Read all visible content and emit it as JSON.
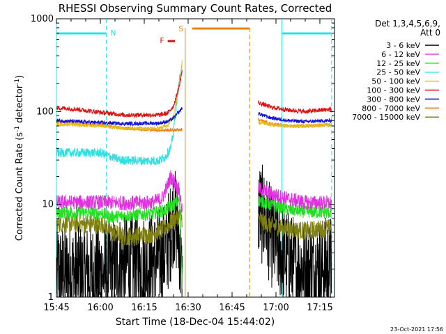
{
  "chart_data": {
    "type": "line",
    "title": "RHESSI Observing Summary Count Rates, Corrected",
    "xlabel": "Start Time (18-Dec-04 15:44:02)",
    "ylabel_main": "Corrected Count Rate (s",
    "ylabel_sup1": "-1",
    "ylabel_mid": " detector",
    "ylabel_sup2": "-1",
    "ylabel_end": ")",
    "y_scale": "log",
    "ylim": [
      1,
      1000
    ],
    "xlim": [
      "15:45",
      "17:20"
    ],
    "x_tick_labels": [
      "15:45",
      "16:00",
      "16:15",
      "16:30",
      "16:45",
      "17:00",
      "17:15"
    ],
    "y_tick_labels": [
      "1",
      "10",
      "100",
      "1000"
    ],
    "legend": {
      "placement": "right",
      "header_line1": "Det 1,3,4,5,6,9,",
      "header_line2": "Att 0",
      "entries": [
        {
          "label": "3 - 6 keV",
          "color": "#000000"
        },
        {
          "label": "6 - 12 keV",
          "color": "#e030e0"
        },
        {
          "label": "12 - 25 keV",
          "color": "#20e020"
        },
        {
          "label": "25 - 50 keV",
          "color": "#30e0e0"
        },
        {
          "label": "50 - 100 keV",
          "color": "#e0c020"
        },
        {
          "label": "100 - 300 keV",
          "color": "#e01010"
        },
        {
          "label": "300 - 800 keV",
          "color": "#1010e0"
        },
        {
          "label": "800 - 7000 keV",
          "color": "#f08010"
        },
        {
          "label": "7000 - 15000 keV",
          "color": "#808010"
        }
      ]
    },
    "annotations": {
      "night_label": "N",
      "saa_label": "S",
      "flare_label": "F",
      "night_color": "#30e0e0",
      "saa_color": "#f08010",
      "flare_color": "#e01010",
      "night_intervals": [
        [
          "15:45",
          "16:02"
        ],
        [
          "17:02",
          "17:19"
        ]
      ],
      "saa_interval": [
        "16:29",
        "16:51"
      ],
      "flare_interval": [
        "16:23",
        "16:25"
      ]
    },
    "series": [
      {
        "label": "3 - 6 keV",
        "color": "#000000",
        "noise": 0.55,
        "segments": [
          {
            "points": [
              [
                "15:45",
                1.8
              ],
              [
                "16:02",
                1.8
              ],
              [
                "16:06",
                2.3
              ],
              [
                "16:14",
                2.3
              ],
              [
                "16:18",
                2.4
              ],
              [
                "16:22",
                3.0
              ],
              [
                "16:24",
                5
              ],
              [
                "16:25",
                8
              ],
              [
                "16:26",
                6
              ],
              [
                "16:27",
                4
              ],
              [
                "16:28",
                1.2
              ]
            ]
          },
          {
            "points": [
              [
                "16:54",
                9
              ],
              [
                "16:56",
                7
              ],
              [
                "16:59",
                4
              ],
              [
                "17:02",
                3
              ],
              [
                "17:06",
                2.2
              ],
              [
                "17:12",
                2.0
              ],
              [
                "17:19",
                2.2
              ]
            ]
          }
        ]
      },
      {
        "label": "6 - 12 keV",
        "color": "#e030e0",
        "noise": 0.08,
        "segments": [
          {
            "points": [
              [
                "15:45",
                10.5
              ],
              [
                "16:02",
                10.5
              ],
              [
                "16:10",
                10.3
              ],
              [
                "16:18",
                10.5
              ],
              [
                "16:21",
                11.5
              ],
              [
                "16:23",
                16
              ],
              [
                "16:24",
                20
              ],
              [
                "16:26",
                16
              ],
              [
                "16:27",
                14
              ],
              [
                "16:28",
                8
              ]
            ]
          },
          {
            "points": [
              [
                "16:54",
                15
              ],
              [
                "16:58",
                13
              ],
              [
                "17:04",
                11.5
              ],
              [
                "17:10",
                10.5
              ],
              [
                "17:19",
                10.3
              ]
            ]
          }
        ]
      },
      {
        "label": "12 - 25 keV",
        "color": "#20e020",
        "noise": 0.07,
        "segments": [
          {
            "points": [
              [
                "15:45",
                8.2
              ],
              [
                "16:01",
                8.0
              ],
              [
                "16:03",
                7.3
              ],
              [
                "16:10",
                7.6
              ],
              [
                "16:18",
                8.0
              ],
              [
                "16:22",
                8.6
              ],
              [
                "16:25",
                10
              ],
              [
                "16:27",
                11
              ],
              [
                "16:28",
                1.3
              ]
            ]
          },
          {
            "points": [
              [
                "16:54",
                11
              ],
              [
                "16:58",
                10
              ],
              [
                "17:04",
                8.8
              ],
              [
                "17:10",
                8.3
              ],
              [
                "17:19",
                8.2
              ]
            ]
          }
        ]
      },
      {
        "label": "25 - 50 keV",
        "color": "#30e0e0",
        "noise": 0.05,
        "segments": [
          {
            "points": [
              [
                "15:45",
                36
              ],
              [
                "16:00",
                36
              ],
              [
                "16:03",
                33
              ],
              [
                "16:07",
                30
              ],
              [
                "16:14",
                29.5
              ],
              [
                "16:20",
                29.5
              ],
              [
                "16:22",
                32
              ],
              [
                "16:24",
                40
              ],
              [
                "16:25",
                60
              ],
              [
                "16:26",
                120
              ],
              [
                "16:27",
                220
              ],
              [
                "16:28",
                300
              ]
            ]
          }
        ]
      },
      {
        "label": "50 - 100 keV",
        "color": "#e0c020",
        "noise": 0.02,
        "segments": [
          {
            "points": [
              [
                "15:45",
                73
              ],
              [
                "16:00",
                70
              ],
              [
                "16:08",
                66
              ],
              [
                "16:20",
                66
              ],
              [
                "16:23",
                70
              ],
              [
                "16:25",
                90
              ],
              [
                "16:27",
                200
              ],
              [
                "16:28",
                360
              ]
            ]
          },
          {
            "points": [
              [
                "16:54",
                77
              ],
              [
                "16:58",
                72
              ],
              [
                "17:04",
                70
              ],
              [
                "17:10",
                70
              ],
              [
                "17:19",
                72
              ]
            ]
          }
        ]
      },
      {
        "label": "100 - 300 keV",
        "color": "#e01010",
        "noise": 0.025,
        "segments": [
          {
            "points": [
              [
                "15:45",
                110
              ],
              [
                "15:52",
                106
              ],
              [
                "16:00",
                98
              ],
              [
                "16:08",
                92
              ],
              [
                "16:20",
                92
              ],
              [
                "16:23",
                96
              ],
              [
                "16:25",
                115
              ],
              [
                "16:27",
                190
              ],
              [
                "16:28",
                280
              ]
            ]
          },
          {
            "points": [
              [
                "16:54",
                125
              ],
              [
                "16:58",
                112
              ],
              [
                "17:04",
                104
              ],
              [
                "17:10",
                100
              ],
              [
                "17:19",
                106
              ]
            ]
          }
        ]
      },
      {
        "label": "300 - 800 keV",
        "color": "#1010e0",
        "noise": 0.02,
        "segments": [
          {
            "points": [
              [
                "15:45",
                80
              ],
              [
                "16:00",
                76
              ],
              [
                "16:08",
                74
              ],
              [
                "16:20",
                75
              ],
              [
                "16:23",
                78
              ],
              [
                "16:25",
                85
              ],
              [
                "16:27",
                100
              ],
              [
                "16:28",
                110
              ]
            ]
          },
          {
            "points": [
              [
                "16:54",
                95
              ],
              [
                "16:58",
                86
              ],
              [
                "17:04",
                80
              ],
              [
                "17:10",
                78
              ],
              [
                "17:19",
                80
              ]
            ]
          }
        ]
      },
      {
        "label": "800 - 7000 keV",
        "color": "#f08010",
        "noise": 0.018,
        "segments": [
          {
            "points": [
              [
                "15:45",
                77
              ],
              [
                "16:00",
                72
              ],
              [
                "16:08",
                66
              ],
              [
                "16:20",
                63
              ],
              [
                "16:25",
                63
              ],
              [
                "16:28",
                64
              ]
            ]
          },
          {
            "points": [
              [
                "16:54",
                82
              ],
              [
                "16:58",
                74
              ],
              [
                "17:04",
                70
              ],
              [
                "17:10",
                70
              ],
              [
                "17:19",
                72
              ]
            ]
          }
        ]
      },
      {
        "label": "7000 - 15000 keV",
        "color": "#808010",
        "noise": 0.1,
        "segments": [
          {
            "points": [
              [
                "15:45",
                6.2
              ],
              [
                "16:01",
                6.1
              ],
              [
                "16:04",
                5.0
              ],
              [
                "16:08",
                4.5
              ],
              [
                "16:14",
                4.6
              ],
              [
                "16:18",
                4.8
              ],
              [
                "16:22",
                5.5
              ],
              [
                "16:25",
                6.8
              ],
              [
                "16:27",
                7.5
              ],
              [
                "16:28",
                7.0
              ]
            ]
          },
          {
            "points": [
              [
                "16:54",
                7.0
              ],
              [
                "16:58",
                6.0
              ],
              [
                "17:04",
                5.4
              ],
              [
                "17:10",
                5.2
              ],
              [
                "17:19",
                5.6
              ]
            ]
          }
        ]
      }
    ]
  },
  "footer": {
    "timestamp": "23-Oct-2021 17:56"
  }
}
